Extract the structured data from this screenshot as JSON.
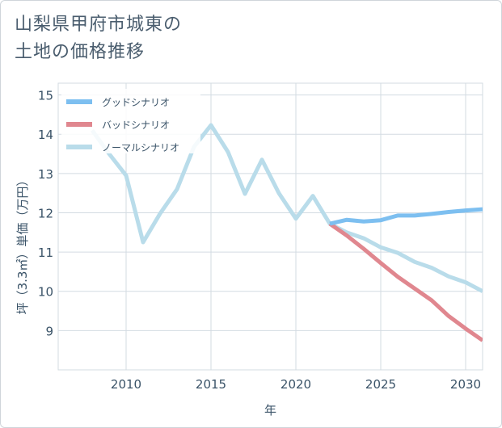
{
  "page": {
    "title_line1": "山梨県甲府市城東の",
    "title_line2": "土地の価格推移"
  },
  "chart_data": {
    "type": "line",
    "xlabel": "年",
    "ylabel": "坪（3.3㎡）単価（万円）",
    "xlim": [
      2006,
      2031
    ],
    "ylim": [
      8,
      15.3
    ],
    "xticks": [
      2010,
      2015,
      2020,
      2025,
      2030
    ],
    "yticks": [
      9,
      10,
      11,
      12,
      13,
      14,
      15
    ],
    "grid": true,
    "legend_position": "top-left",
    "series": [
      {
        "name": "グッドシナリオ",
        "color": "#7dbff0",
        "x": [
          2022,
          2023,
          2024,
          2025,
          2026,
          2027,
          2028,
          2029,
          2030,
          2031
        ],
        "values": [
          11.72,
          11.82,
          11.78,
          11.81,
          11.93,
          11.93,
          11.97,
          12.02,
          12.06,
          12.09
        ]
      },
      {
        "name": "バッドシナリオ",
        "color": "#e0878f",
        "x": [
          2022,
          2023,
          2024,
          2025,
          2026,
          2027,
          2028,
          2029,
          2030,
          2031
        ],
        "values": [
          11.72,
          11.42,
          11.08,
          10.72,
          10.37,
          10.07,
          9.77,
          9.37,
          9.05,
          8.75
        ]
      },
      {
        "name": "ノーマルシナリオ",
        "color": "#b9dcea",
        "x": [
          2008,
          2009,
          2010,
          2011,
          2012,
          2013,
          2014,
          2015,
          2016,
          2017,
          2018,
          2019,
          2020,
          2021,
          2022,
          2023,
          2024,
          2025,
          2026,
          2027,
          2028,
          2029,
          2030,
          2031
        ],
        "values": [
          14.1,
          13.5,
          12.95,
          11.25,
          11.98,
          12.6,
          13.68,
          14.23,
          13.55,
          12.48,
          13.35,
          12.5,
          11.85,
          12.43,
          11.72,
          11.5,
          11.35,
          11.12,
          10.98,
          10.75,
          10.6,
          10.38,
          10.23,
          10.0
        ]
      }
    ]
  }
}
